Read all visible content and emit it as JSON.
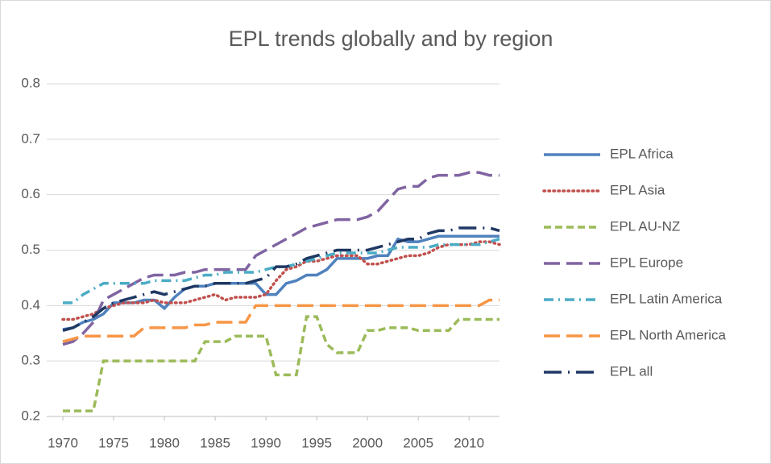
{
  "chart_data": {
    "type": "line",
    "title": "EPL trends globally and by region",
    "x": [
      1970,
      1971,
      1972,
      1973,
      1974,
      1975,
      1976,
      1977,
      1978,
      1979,
      1980,
      1981,
      1982,
      1983,
      1984,
      1985,
      1986,
      1987,
      1988,
      1989,
      1990,
      1991,
      1992,
      1993,
      1994,
      1995,
      1996,
      1997,
      1998,
      1999,
      2000,
      2001,
      2002,
      2003,
      2004,
      2005,
      2006,
      2007,
      2008,
      2009,
      2010,
      2011,
      2012,
      2013
    ],
    "xlim": [
      1970,
      2013
    ],
    "xticks": [
      1970,
      1975,
      1980,
      1985,
      1990,
      1995,
      2000,
      2005,
      2010
    ],
    "ylim": [
      0.2,
      0.8
    ],
    "yticks": [
      0.2,
      0.3,
      0.4,
      0.5,
      0.6,
      0.7,
      0.8
    ],
    "grid": true,
    "legend": "right",
    "series": [
      {
        "name": "EPL Africa",
        "color": "#4f81bd",
        "dash": "solid",
        "values": [
          0.357,
          0.36,
          0.37,
          0.375,
          0.385,
          0.405,
          0.405,
          0.405,
          0.41,
          0.41,
          0.395,
          0.415,
          0.43,
          0.435,
          0.435,
          0.44,
          0.44,
          0.44,
          0.44,
          0.44,
          0.42,
          0.42,
          0.44,
          0.445,
          0.455,
          0.455,
          0.465,
          0.485,
          0.485,
          0.485,
          0.485,
          0.49,
          0.49,
          0.52,
          0.515,
          0.515,
          0.52,
          0.525,
          0.525,
          0.525,
          0.525,
          0.525,
          0.525,
          0.525
        ]
      },
      {
        "name": "EPL Asia",
        "color": "#c0504d",
        "dash": "dot",
        "values": [
          0.375,
          0.375,
          0.38,
          0.385,
          0.395,
          0.4,
          0.405,
          0.405,
          0.405,
          0.41,
          0.405,
          0.405,
          0.405,
          0.41,
          0.415,
          0.42,
          0.41,
          0.415,
          0.415,
          0.415,
          0.42,
          0.445,
          0.465,
          0.47,
          0.48,
          0.48,
          0.485,
          0.49,
          0.49,
          0.49,
          0.475,
          0.475,
          0.48,
          0.485,
          0.49,
          0.49,
          0.495,
          0.505,
          0.51,
          0.51,
          0.51,
          0.515,
          0.515,
          0.51
        ]
      },
      {
        "name": "EPL AU-NZ",
        "color": "#9bbb59",
        "dash": "dash",
        "values": [
          0.21,
          0.21,
          0.21,
          0.21,
          0.3,
          0.3,
          0.3,
          0.3,
          0.3,
          0.3,
          0.3,
          0.3,
          0.3,
          0.3,
          0.335,
          0.335,
          0.335,
          0.345,
          0.345,
          0.345,
          0.345,
          0.275,
          0.275,
          0.275,
          0.38,
          0.38,
          0.33,
          0.315,
          0.315,
          0.315,
          0.355,
          0.355,
          0.36,
          0.36,
          0.36,
          0.355,
          0.355,
          0.355,
          0.355,
          0.375,
          0.375,
          0.375,
          0.375,
          0.375
        ]
      },
      {
        "name": "EPL Europe",
        "color": "#8064a2",
        "dash": "longdash",
        "values": [
          0.33,
          0.335,
          0.35,
          0.37,
          0.41,
          0.42,
          0.43,
          0.44,
          0.45,
          0.455,
          0.455,
          0.455,
          0.46,
          0.46,
          0.465,
          0.465,
          0.465,
          0.465,
          0.465,
          0.49,
          0.5,
          0.51,
          0.52,
          0.53,
          0.54,
          0.545,
          0.55,
          0.555,
          0.555,
          0.555,
          0.56,
          0.57,
          0.59,
          0.61,
          0.615,
          0.615,
          0.63,
          0.635,
          0.635,
          0.635,
          0.64,
          0.64,
          0.635,
          0.635
        ]
      },
      {
        "name": "EPL Latin America",
        "color": "#4bacc6",
        "dash": "dashdot",
        "values": [
          0.405,
          0.405,
          0.42,
          0.43,
          0.44,
          0.44,
          0.44,
          0.44,
          0.44,
          0.445,
          0.445,
          0.445,
          0.445,
          0.45,
          0.455,
          0.455,
          0.46,
          0.46,
          0.46,
          0.46,
          0.465,
          0.47,
          0.47,
          0.475,
          0.48,
          0.485,
          0.49,
          0.495,
          0.495,
          0.495,
          0.495,
          0.495,
          0.5,
          0.505,
          0.505,
          0.505,
          0.505,
          0.51,
          0.51,
          0.51,
          0.51,
          0.51,
          0.515,
          0.52
        ]
      },
      {
        "name": "EPL North America",
        "color": "#f79646",
        "dash": "longdash",
        "values": [
          0.335,
          0.34,
          0.345,
          0.345,
          0.345,
          0.345,
          0.345,
          0.345,
          0.36,
          0.36,
          0.36,
          0.36,
          0.36,
          0.365,
          0.365,
          0.37,
          0.37,
          0.37,
          0.37,
          0.4,
          0.4,
          0.4,
          0.4,
          0.4,
          0.4,
          0.4,
          0.4,
          0.4,
          0.4,
          0.4,
          0.4,
          0.4,
          0.4,
          0.4,
          0.4,
          0.4,
          0.4,
          0.4,
          0.4,
          0.4,
          0.4,
          0.4,
          0.41,
          0.41
        ]
      },
      {
        "name": "EPL all",
        "color": "#1f3864",
        "dash": "longdashdot",
        "values": [
          0.355,
          0.36,
          0.37,
          0.38,
          0.395,
          0.405,
          0.41,
          0.415,
          0.42,
          0.425,
          0.42,
          0.425,
          0.43,
          0.435,
          0.435,
          0.44,
          0.44,
          0.44,
          0.44,
          0.445,
          0.45,
          0.47,
          0.47,
          0.475,
          0.485,
          0.49,
          0.495,
          0.5,
          0.5,
          0.5,
          0.5,
          0.505,
          0.51,
          0.515,
          0.52,
          0.52,
          0.53,
          0.535,
          0.535,
          0.54,
          0.54,
          0.54,
          0.54,
          0.535
        ]
      }
    ]
  }
}
